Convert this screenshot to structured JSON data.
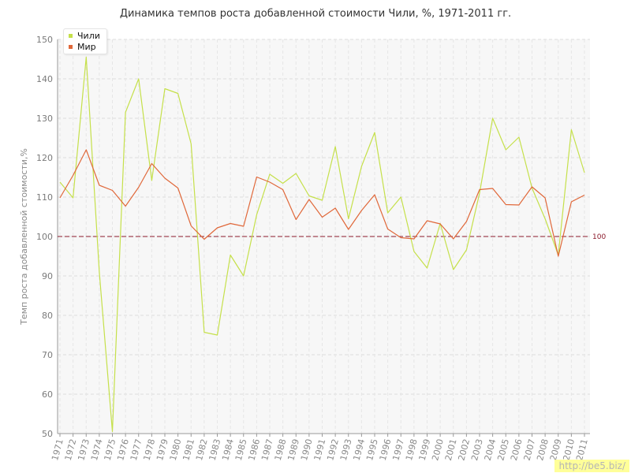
{
  "chart_data": {
    "type": "line",
    "title": "Динамика темпов роста добавленной стоимости Чили, %, 1971-2011 гг.",
    "xlabel": "",
    "ylabel": "Темп роста добавленной стоимости,%",
    "x": [
      "1971",
      "1972",
      "1973",
      "1974",
      "1975",
      "1976",
      "1977",
      "1978",
      "1979",
      "1980",
      "1981",
      "1982",
      "1983",
      "1984",
      "1985",
      "1986",
      "1987",
      "1988",
      "1989",
      "1990",
      "1991",
      "1992",
      "1993",
      "1994",
      "1995",
      "1996",
      "1997",
      "1998",
      "1999",
      "2000",
      "2001",
      "2002",
      "2003",
      "2004",
      "2005",
      "2006",
      "2007",
      "2008",
      "2009",
      "2010",
      "2011"
    ],
    "ylim": [
      50,
      150
    ],
    "yticks": [
      50,
      60,
      70,
      80,
      90,
      100,
      110,
      120,
      130,
      140,
      150
    ],
    "grid": true,
    "legend_position": "top-left",
    "reference_line": {
      "value": 100,
      "label": "100",
      "color": "#8b1a2b"
    },
    "series": [
      {
        "name": "Чили",
        "color": "#c5e04a",
        "values": [
          113.8,
          109.8,
          145.5,
          91.0,
          50.5,
          131.5,
          140.0,
          114.2,
          137.5,
          136.3,
          123.5,
          75.7,
          75.0,
          95.3,
          90.0,
          105.5,
          115.8,
          113.5,
          116.0,
          110.3,
          109.2,
          122.8,
          104.5,
          117.8,
          126.4,
          106.0,
          110.0,
          96.2,
          92.0,
          103.3,
          91.6,
          96.6,
          111.0,
          130.0,
          122.0,
          125.2,
          112.3,
          104.5,
          95.3,
          127.1,
          116.2
        ]
      },
      {
        "name": "Мир",
        "color": "#e0683a",
        "values": [
          109.8,
          115.5,
          122.0,
          113.0,
          111.7,
          107.7,
          112.5,
          118.5,
          114.8,
          112.3,
          102.7,
          99.3,
          102.2,
          103.3,
          102.6,
          115.1,
          113.8,
          111.9,
          104.3,
          109.4,
          104.9,
          107.2,
          101.8,
          106.6,
          110.6,
          101.9,
          99.7,
          99.4,
          104.0,
          103.2,
          99.4,
          103.8,
          111.9,
          112.2,
          108.1,
          108.0,
          112.6,
          109.8,
          95.0,
          108.8,
          110.5
        ]
      }
    ]
  },
  "watermark": "http://be5.biz/"
}
